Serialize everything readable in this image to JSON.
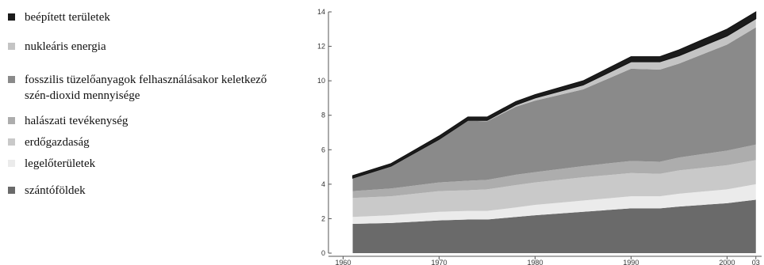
{
  "chart_data": {
    "type": "stacked-area",
    "x": [
      1961,
      1965,
      1970,
      1973,
      1975,
      1978,
      1980,
      1985,
      1990,
      1993,
      1995,
      2000,
      2003
    ],
    "series": [
      {
        "name": "beépített területek",
        "color": "#1c1c1c",
        "values": [
          0.15,
          0.15,
          0.2,
          0.2,
          0.2,
          0.2,
          0.2,
          0.25,
          0.3,
          0.3,
          0.35,
          0.4,
          0.4
        ]
      },
      {
        "name": "nukleáris energia",
        "color": "#c4c4c4",
        "values": [
          0,
          0,
          0,
          0.02,
          0.05,
          0.1,
          0.15,
          0.25,
          0.4,
          0.45,
          0.45,
          0.5,
          0.5
        ]
      },
      {
        "name": "fosszilis tüzelőanyagok felhasználásakor keletkező szén-dioxid mennyisége",
        "color": "#8a8a8a",
        "values": [
          0.75,
          1.3,
          2.5,
          3.48,
          3.4,
          3.95,
          4.15,
          4.45,
          5.35,
          5.35,
          5.45,
          6.15,
          6.8
        ]
      },
      {
        "name": "halászati tevékenység",
        "color": "#adadad",
        "values": [
          0.4,
          0.45,
          0.5,
          0.55,
          0.55,
          0.6,
          0.6,
          0.65,
          0.7,
          0.7,
          0.75,
          0.85,
          0.9
        ]
      },
      {
        "name": "erdőgazdaság",
        "color": "#c9c9c9",
        "values": [
          1.1,
          1.1,
          1.2,
          1.2,
          1.25,
          1.3,
          1.3,
          1.35,
          1.35,
          1.3,
          1.35,
          1.4,
          1.4
        ]
      },
      {
        "name": "legelőterületek",
        "color": "#ebebeb",
        "values": [
          0.4,
          0.45,
          0.5,
          0.5,
          0.5,
          0.55,
          0.6,
          0.65,
          0.7,
          0.7,
          0.75,
          0.8,
          0.9
        ]
      },
      {
        "name": "szántóföldek",
        "color": "#6a6a6a",
        "values": [
          1.7,
          1.75,
          1.9,
          1.95,
          1.95,
          2.1,
          2.2,
          2.4,
          2.6,
          2.6,
          2.7,
          2.9,
          3.1
        ]
      }
    ],
    "xlim": [
      1959.3,
      2003.6
    ],
    "xticks": [
      1960,
      1970,
      1980,
      1990,
      2000,
      {
        "value": 2003,
        "label": "03"
      }
    ],
    "ylim": [
      0,
      14
    ],
    "yticks": [
      0,
      2,
      4,
      6,
      8,
      10,
      12,
      14
    ]
  }
}
